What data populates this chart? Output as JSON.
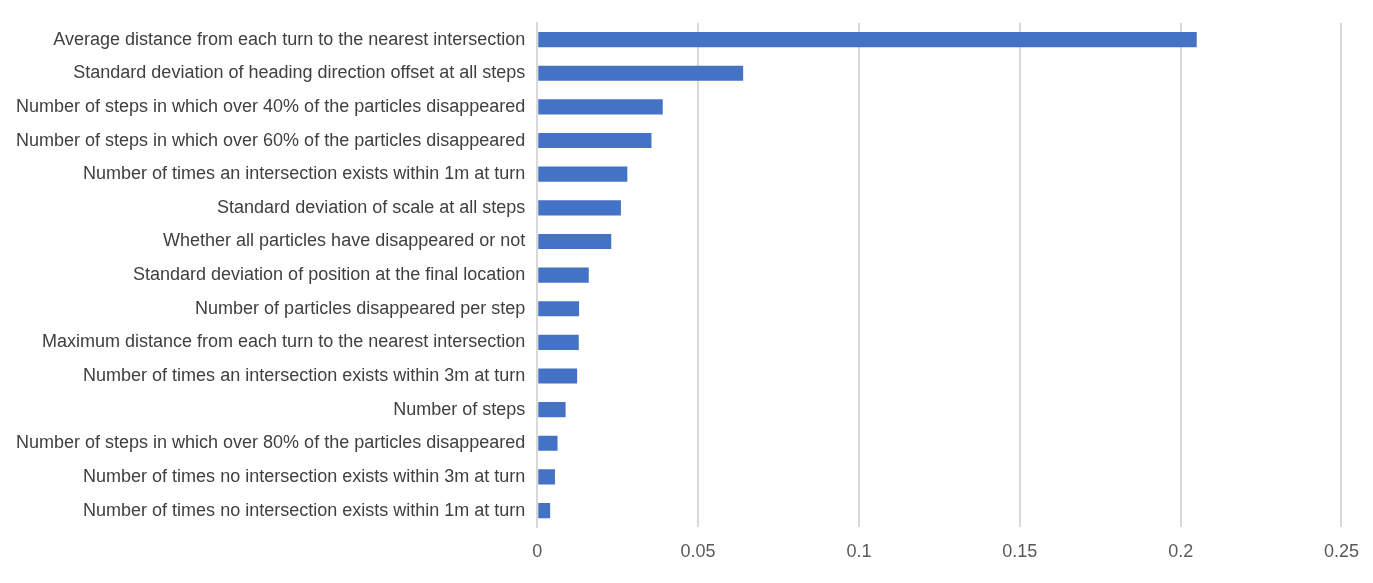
{
  "chart_data": {
    "type": "bar",
    "orientation": "horizontal",
    "categories": [
      "Average distance from each turn to the nearest intersection",
      "Standard deviation of heading direction offset at all steps",
      "Number of steps in which over 40% of the particles disappeared",
      "Number of steps in which over 60% of the particles disappeared",
      "Number of times an intersection exists within 1m at turn",
      "Standard deviation of scale at all steps",
      "Whether all particles have disappeared or not",
      "Standard deviation of position at the final location",
      "Number of particles disappeared per step",
      "Maximum distance from each turn to the nearest intersection",
      "Number of times an intersection exists within 3m at turn",
      "Number of steps",
      "Number of steps in which over 80% of the particles disappeared",
      "Number of times no intersection exists within 3m at turn",
      "Number of times no intersection exists within 1m at turn"
    ],
    "values": [
      0.205,
      0.064,
      0.039,
      0.0355,
      0.028,
      0.026,
      0.023,
      0.016,
      0.013,
      0.0129,
      0.0124,
      0.0088,
      0.0063,
      0.0055,
      0.004
    ],
    "color": "#4472c4",
    "xlim": [
      0,
      0.25
    ],
    "xticks": [
      0,
      0.05,
      0.1,
      0.15,
      0.2,
      0.25
    ],
    "grid": "x",
    "legend": false
  }
}
